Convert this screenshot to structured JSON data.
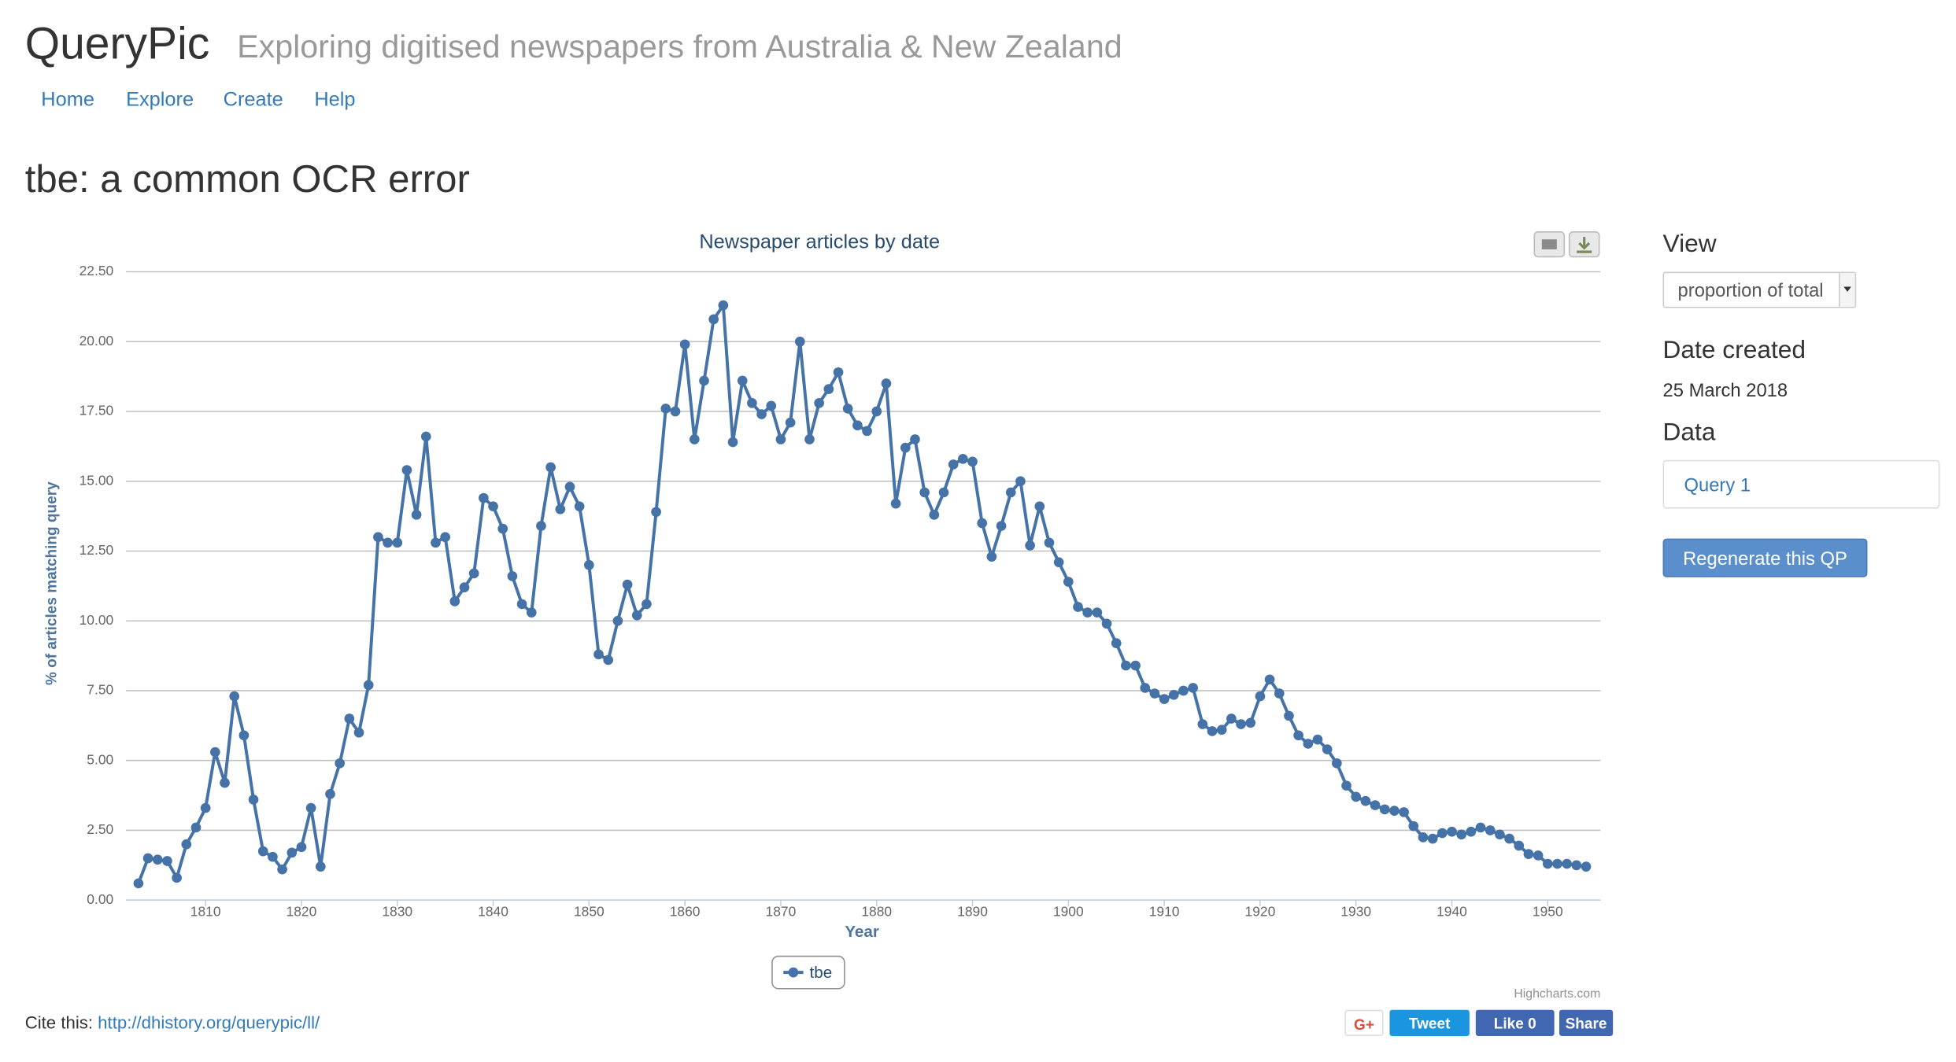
{
  "header": {
    "title": "QueryPic",
    "subtitle": "Exploring digitised newspapers from Australia & New Zealand"
  },
  "nav": [
    "Home",
    "Explore",
    "Create",
    "Help"
  ],
  "page_title": "tbe: a common OCR error",
  "chart_data": {
    "type": "line",
    "title": "Newspaper articles by date",
    "xlabel": "Year",
    "ylabel": "% of articles matching query",
    "credit": "Highcharts.com",
    "x": [
      1803,
      1804,
      1805,
      1806,
      1807,
      1808,
      1809,
      1810,
      1811,
      1812,
      1813,
      1814,
      1815,
      1816,
      1817,
      1818,
      1819,
      1820,
      1821,
      1822,
      1823,
      1824,
      1825,
      1826,
      1827,
      1828,
      1829,
      1830,
      1831,
      1832,
      1833,
      1834,
      1835,
      1836,
      1837,
      1838,
      1839,
      1840,
      1841,
      1842,
      1843,
      1844,
      1845,
      1846,
      1847,
      1848,
      1849,
      1850,
      1851,
      1852,
      1853,
      1854,
      1855,
      1856,
      1857,
      1858,
      1859,
      1860,
      1861,
      1862,
      1863,
      1864,
      1865,
      1866,
      1867,
      1868,
      1869,
      1870,
      1871,
      1872,
      1873,
      1874,
      1875,
      1876,
      1877,
      1878,
      1879,
      1880,
      1881,
      1882,
      1883,
      1884,
      1885,
      1886,
      1887,
      1888,
      1889,
      1890,
      1891,
      1892,
      1893,
      1894,
      1895,
      1896,
      1897,
      1898,
      1899,
      1900,
      1901,
      1902,
      1903,
      1904,
      1905,
      1906,
      1907,
      1908,
      1909,
      1910,
      1911,
      1912,
      1913,
      1914,
      1915,
      1916,
      1917,
      1918,
      1919,
      1920,
      1921,
      1922,
      1923,
      1924,
      1925,
      1926,
      1927,
      1928,
      1929,
      1930,
      1931,
      1932,
      1933,
      1934,
      1935,
      1936,
      1937,
      1938,
      1939,
      1940,
      1941,
      1942,
      1943,
      1944,
      1945,
      1946,
      1947,
      1948,
      1949,
      1950,
      1951,
      1952,
      1953,
      1954
    ],
    "series": [
      {
        "name": "tbe",
        "color": "#4572a7",
        "values": [
          0.6,
          1.5,
          1.45,
          1.4,
          0.8,
          2.0,
          2.6,
          3.3,
          5.3,
          4.2,
          7.3,
          5.9,
          3.6,
          1.75,
          1.55,
          1.1,
          1.7,
          1.9,
          3.3,
          1.2,
          3.8,
          4.9,
          6.5,
          6.0,
          7.7,
          13.0,
          12.8,
          12.8,
          15.4,
          13.8,
          16.6,
          12.8,
          13.0,
          10.7,
          11.2,
          11.7,
          14.4,
          14.1,
          13.3,
          11.6,
          10.6,
          10.3,
          13.4,
          15.5,
          14.0,
          14.8,
          14.1,
          12.0,
          8.8,
          8.6,
          10.0,
          11.3,
          10.2,
          10.6,
          13.9,
          17.6,
          17.5,
          19.9,
          16.5,
          18.6,
          20.8,
          21.3,
          16.4,
          18.6,
          17.8,
          17.4,
          17.7,
          16.5,
          17.1,
          20.0,
          16.5,
          17.8,
          18.3,
          18.9,
          17.6,
          17.0,
          16.8,
          17.5,
          18.5,
          14.2,
          16.2,
          16.5,
          14.6,
          13.8,
          14.6,
          15.6,
          15.8,
          15.7,
          13.5,
          12.3,
          13.4,
          14.6,
          15.0,
          12.7,
          14.1,
          12.8,
          12.1,
          11.4,
          10.5,
          10.3,
          10.3,
          9.9,
          9.2,
          8.4,
          8.4,
          7.6,
          7.4,
          7.2,
          7.35,
          7.5,
          7.6,
          6.3,
          6.05,
          6.1,
          6.5,
          6.3,
          6.35,
          7.3,
          7.9,
          7.4,
          6.6,
          5.9,
          5.6,
          5.75,
          5.4,
          4.9,
          4.1,
          3.7,
          3.55,
          3.4,
          3.25,
          3.2,
          3.15,
          2.65,
          2.25,
          2.2,
          2.4,
          2.45,
          2.35,
          2.45,
          2.6,
          2.5,
          2.35,
          2.2,
          1.95,
          1.65,
          1.6,
          1.3,
          1.3,
          1.3,
          1.25,
          1.2
        ]
      }
    ],
    "xlim": [
      1801.7,
      1955.5
    ],
    "ylim": [
      0,
      22.5
    ],
    "xticks": [
      1810,
      1820,
      1830,
      1840,
      1850,
      1860,
      1870,
      1880,
      1890,
      1900,
      1910,
      1920,
      1930,
      1940,
      1950
    ],
    "yticks": [
      {
        "value": 0,
        "label": "0.00"
      },
      {
        "value": 2.5,
        "label": "2.50"
      },
      {
        "value": 5,
        "label": "5.00"
      },
      {
        "value": 7.5,
        "label": "7.50"
      },
      {
        "value": 10,
        "label": "10.00"
      },
      {
        "value": 12.5,
        "label": "12.50"
      },
      {
        "value": 15,
        "label": "15.00"
      },
      {
        "value": 17.5,
        "label": "17.50"
      },
      {
        "value": 20,
        "label": "20.00"
      },
      {
        "value": 22.5,
        "label": "22.50"
      }
    ],
    "grid": true,
    "legend": "bottom"
  },
  "sidebar": {
    "view_label": "View",
    "view_option": "proportion of total",
    "date_label": "Date created",
    "date": "25 March 2018",
    "data_label": "Data",
    "query": "Query 1",
    "button": "Regenerate this QP"
  },
  "footer": {
    "cite_label": "Cite this:",
    "cite_url": "http://dhistory.org/querypic/ll/",
    "share": [
      "G+",
      "Tweet",
      "Like 0",
      "Share"
    ]
  }
}
